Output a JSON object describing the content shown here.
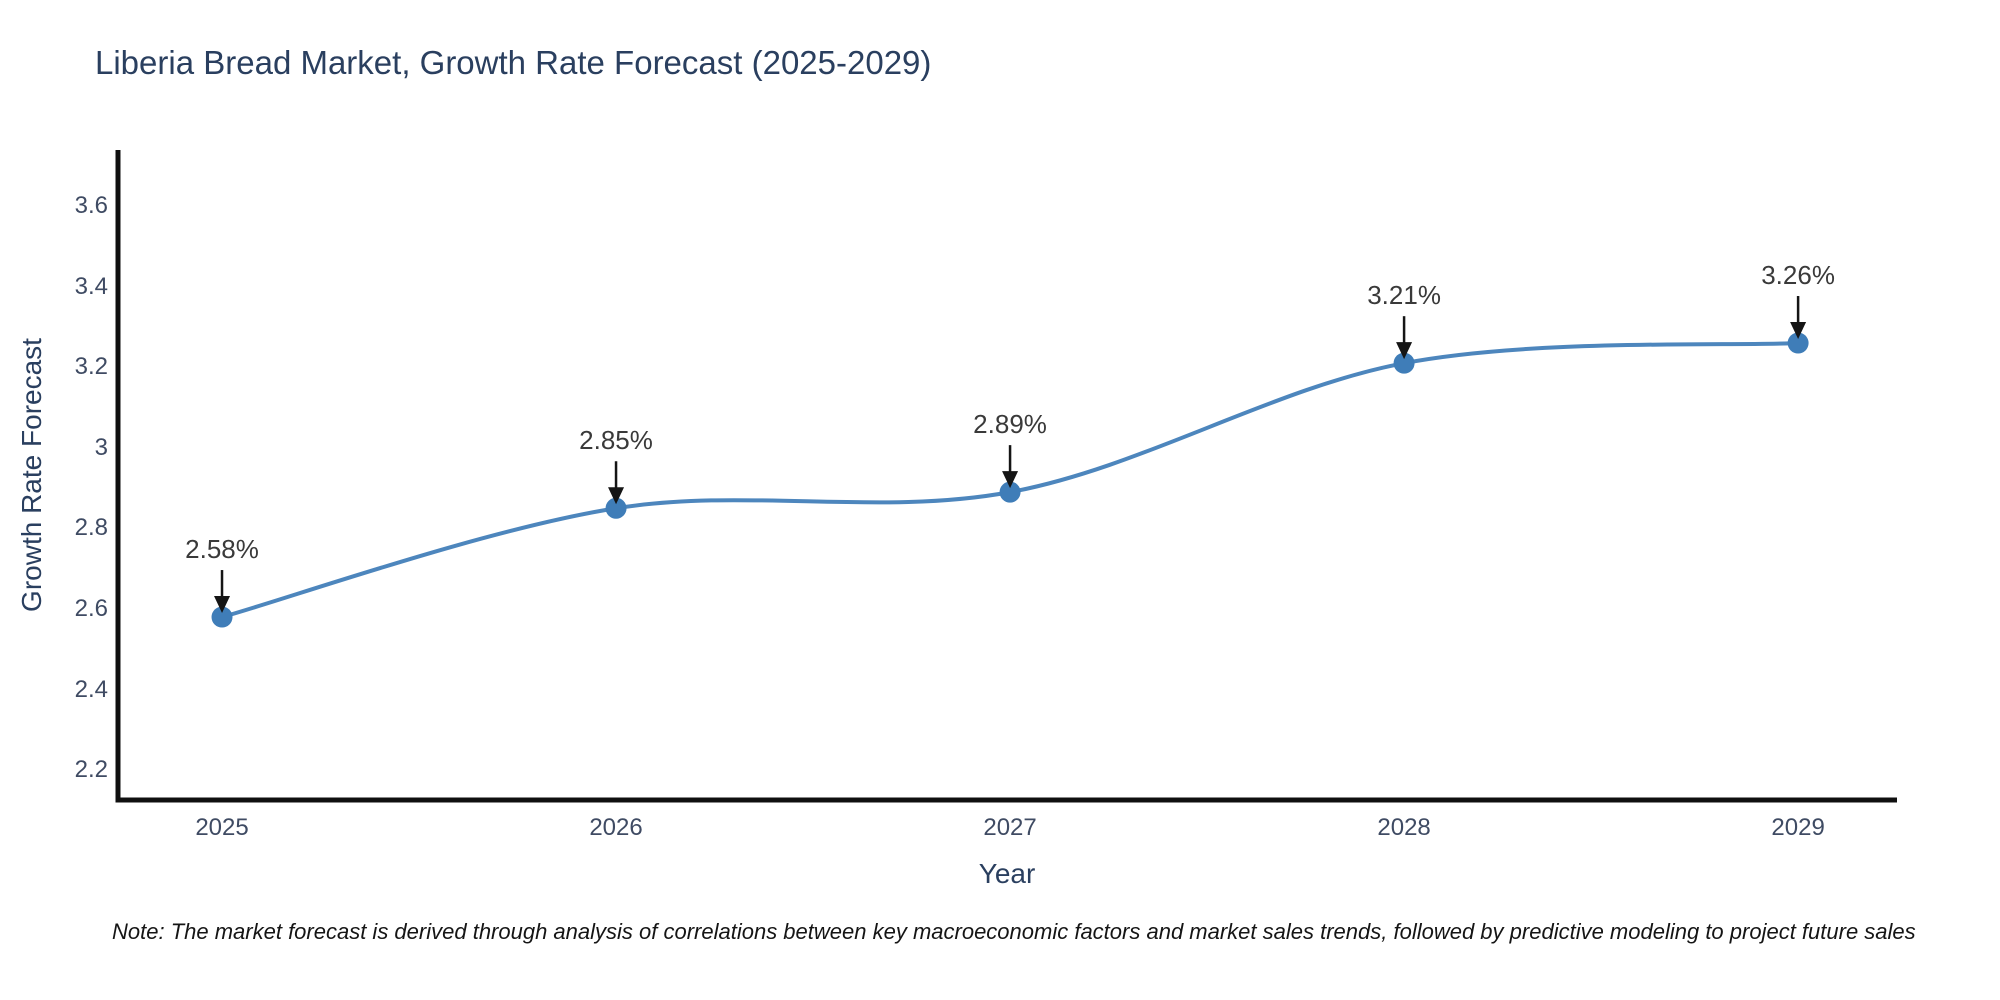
{
  "title": "Liberia Bread Market, Growth Rate Forecast (2025-2029)",
  "note": "Note: The market forecast is derived through analysis of correlations between key macroeconomic factors and market sales trends, followed by predictive modeling to project future sales",
  "chart_data": {
    "type": "line",
    "line_shape": "spline",
    "title": "Liberia Bread Market, Growth Rate Forecast (2025-2029)",
    "xlabel": "Year",
    "ylabel": "Growth Rate Forecast",
    "x": [
      2025,
      2026,
      2027,
      2028,
      2029
    ],
    "y": [
      2.58,
      2.85,
      2.89,
      3.21,
      3.26
    ],
    "point_labels": [
      "2.58%",
      "2.85%",
      "2.89%",
      "3.21%",
      "3.26%"
    ],
    "xtick_labels": [
      "2025",
      "2026",
      "2027",
      "2028",
      "2029"
    ],
    "ytick_values": [
      3.6,
      3.4,
      3.2,
      3.0,
      2.8,
      2.6,
      2.4,
      2.2
    ],
    "ytick_labels": [
      "3.6",
      "3.4",
      "3.2",
      "3",
      "2.8",
      "2.6",
      "2.4",
      "2.2"
    ],
    "xlim": [
      2024.736,
      2029.251
    ],
    "ylim": [
      2.126,
      3.739
    ],
    "grid": false,
    "legend": "none",
    "marker_size": 21,
    "line_width": 4,
    "colors": {
      "line": "#4d86bd",
      "marker": "#3f7db8",
      "axis": "#101010",
      "arrow": "#151515",
      "title_text": "#2a3f5f",
      "tick_text": "#3f4b63",
      "annotation_text": "#3a3a3a",
      "note_text": "#151515",
      "background": "#ffffff"
    }
  }
}
